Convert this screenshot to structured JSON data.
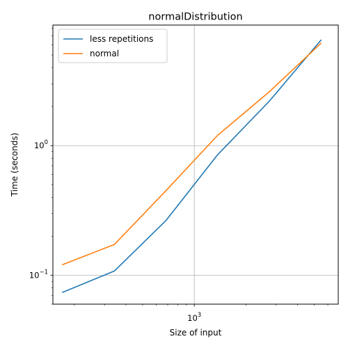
{
  "chart_data": {
    "type": "line",
    "title": "normalDistribution",
    "xlabel": "Size of input",
    "ylabel": "Time (seconds)",
    "x_scale": "log",
    "y_scale": "log",
    "xlim": [
      150,
      6900
    ],
    "ylim": [
      0.06,
      8.5
    ],
    "x_ticks": [
      {
        "value": 1000,
        "base": "10",
        "exp": "3"
      }
    ],
    "y_ticks": [
      {
        "value": 0.1,
        "base": "10",
        "exp": "−1"
      },
      {
        "value": 1,
        "base": "10",
        "exp": "0"
      }
    ],
    "grid": true,
    "legend_position": "upper left",
    "x": [
      171,
      342,
      684,
      1367,
      2734,
      5468
    ],
    "series": [
      {
        "name": "less repetitions",
        "color": "#1f77b4",
        "values": [
          0.074,
          0.108,
          0.265,
          0.85,
          2.2,
          6.5
        ]
      },
      {
        "name": "normal",
        "color": "#ff7f0e",
        "values": [
          0.121,
          0.173,
          0.45,
          1.2,
          2.6,
          6.15
        ]
      }
    ]
  }
}
